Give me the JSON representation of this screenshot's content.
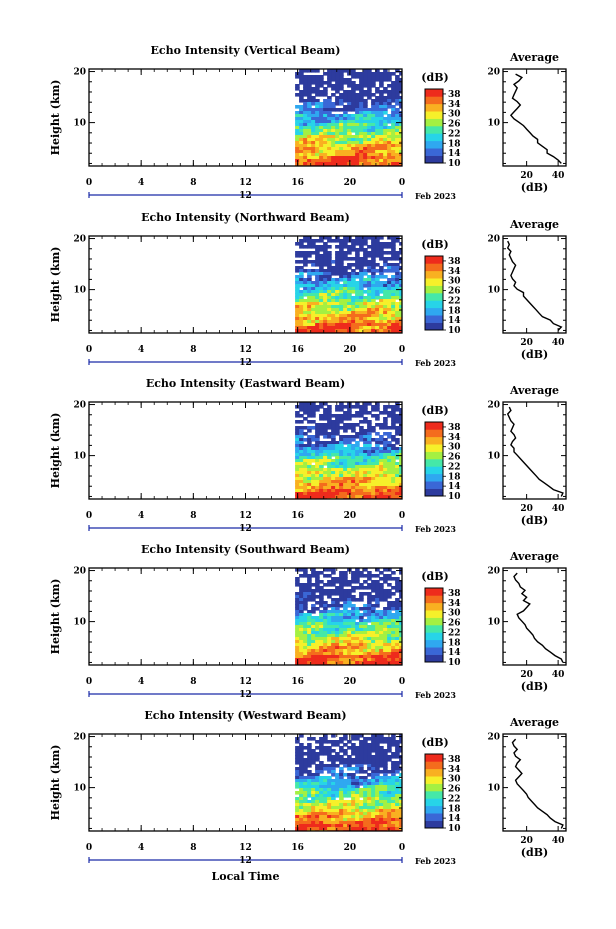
{
  "chart_data": {
    "type": "heatmap",
    "panels": [
      {
        "title": "Echo Intensity (Vertical Beam)",
        "profile": [
          42,
          40,
          37,
          33,
          33,
          30,
          27,
          27,
          24,
          22,
          20,
          18,
          15,
          12,
          10,
          12,
          14,
          16,
          14,
          11,
          12,
          13,
          14,
          12,
          15,
          17,
          13
        ]
      },
      {
        "title": "Echo Intensity (Northward Beam)",
        "profile": [
          40,
          42,
          37,
          35,
          30,
          28,
          26,
          24,
          22,
          20,
          18,
          18,
          14,
          12,
          13,
          11,
          10,
          11,
          12,
          13,
          11,
          10,
          9,
          10,
          8,
          9,
          8
        ]
      },
      {
        "title": "Echo Intensity (Eastward Beam)",
        "profile": [
          42,
          43,
          37,
          34,
          31,
          28,
          26,
          24,
          22,
          20,
          18,
          16,
          14,
          12,
          12,
          10,
          11,
          13,
          12,
          10,
          11,
          12,
          10,
          9,
          8,
          10,
          9
        ]
      },
      {
        "title": "Echo Intensity (Southward Beam)",
        "profile": [
          43,
          42,
          38,
          35,
          32,
          30,
          27,
          25,
          24,
          22,
          20,
          19,
          17,
          15,
          14,
          18,
          20,
          22,
          18,
          20,
          17,
          19,
          16,
          15,
          13,
          12,
          14
        ]
      },
      {
        "title": "Echo Intensity (Westward Beam)",
        "profile": [
          42,
          43,
          38,
          35,
          33,
          30,
          27,
          25,
          23,
          21,
          20,
          18,
          16,
          14,
          13,
          15,
          17,
          15,
          13,
          14,
          16,
          13,
          12,
          14,
          12,
          11,
          13
        ]
      }
    ],
    "x_ticks": [
      "0",
      "4",
      "8",
      "12",
      "16",
      "20",
      "0"
    ],
    "x_range_hours": [
      0,
      24
    ],
    "data_start_hour": 15.8,
    "y_ticks": [
      "20",
      "10"
    ],
    "y_range_km": [
      1.5,
      20.5
    ],
    "ylabel": "Height (km)",
    "date_tick": "12",
    "date_label": "Feb 2023",
    "xlabel": "Local Time",
    "colorbar_unit": "(dB)",
    "colorbar_ticks": [
      "38",
      "34",
      "30",
      "26",
      "22",
      "18",
      "14",
      "10"
    ],
    "colorbar_range": [
      10,
      40
    ],
    "colormap": [
      "#2d3b9e",
      "#3a67d6",
      "#2fa8f0",
      "#27d4e8",
      "#45e8a8",
      "#a4f042",
      "#f6f02a",
      "#f9b021",
      "#f46c1d",
      "#ee2b1c"
    ],
    "profile_title": "Average",
    "profile_xlabel": "(dB)",
    "profile_x_ticks": [
      "20",
      "40"
    ],
    "profile_x_range": [
      5,
      45
    ]
  }
}
